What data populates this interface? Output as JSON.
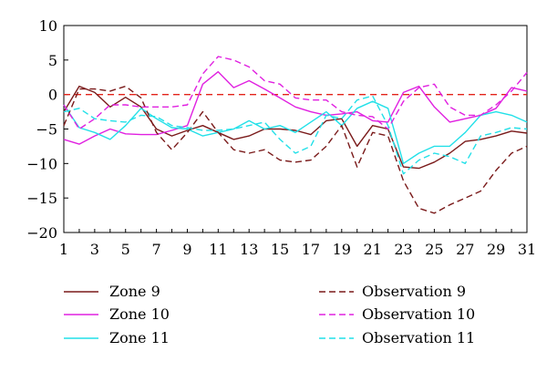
{
  "chart_data": {
    "type": "line",
    "title": "",
    "xlabel": "",
    "ylabel": "",
    "xlim": [
      1,
      31
    ],
    "ylim": [
      -20,
      10
    ],
    "x_ticks": [
      1,
      3,
      5,
      7,
      9,
      11,
      13,
      15,
      17,
      19,
      21,
      23,
      25,
      27,
      29,
      31
    ],
    "y_ticks": [
      10,
      5,
      0,
      -5,
      -10,
      -15,
      -20
    ],
    "x_tick_labels": [
      "1",
      "3",
      "5",
      "7",
      "9",
      "11",
      "13",
      "15",
      "17",
      "19",
      "21",
      "23",
      "25",
      "27",
      "29",
      "31"
    ],
    "y_tick_labels": [
      "10",
      "5",
      "0",
      "−5",
      "−10",
      "−15",
      "−20"
    ],
    "x": [
      1,
      2,
      3,
      4,
      5,
      6,
      7,
      8,
      9,
      10,
      11,
      12,
      13,
      14,
      15,
      16,
      17,
      18,
      19,
      20,
      21,
      22,
      23,
      24,
      25,
      26,
      27,
      28,
      29,
      30,
      31
    ],
    "reference_line": {
      "y": 0,
      "color": "#e3241b",
      "style": "dashed"
    },
    "legend_position": "bottom",
    "series": [
      {
        "name": "Zone 9",
        "color": "#7a1a1a",
        "style": "solid",
        "values": [
          -2.5,
          1.2,
          0.3,
          -1.8,
          -0.4,
          -1.8,
          -5.0,
          -6.0,
          -5.2,
          -4.5,
          -5.5,
          -6.5,
          -6.0,
          -5.0,
          -5.0,
          -5.2,
          -5.8,
          -3.8,
          -3.5,
          -7.5,
          -4.5,
          -5.0,
          -10.5,
          -10.7,
          -9.8,
          -8.5,
          -6.8,
          -6.5,
          -6.0,
          -5.3,
          -5.6
        ]
      },
      {
        "name": "Zone 10",
        "color": "#e020e0",
        "style": "solid",
        "values": [
          -6.5,
          -7.2,
          -6.0,
          -5.0,
          -5.7,
          -5.8,
          -5.8,
          -5.2,
          -4.5,
          1.5,
          3.3,
          1.0,
          2.0,
          0.8,
          -0.5,
          -1.8,
          -2.5,
          -3.0,
          -2.8,
          -2.5,
          -3.8,
          -4.0,
          0.3,
          1.2,
          -1.8,
          -4.0,
          -3.5,
          -3.0,
          -2.0,
          1.0,
          0.5
        ]
      },
      {
        "name": "Zone 11",
        "color": "#22e0e8",
        "style": "solid",
        "values": [
          -1.5,
          -4.8,
          -5.5,
          -6.5,
          -4.5,
          -2.0,
          -3.5,
          -4.8,
          -5.0,
          -6.0,
          -5.5,
          -5.0,
          -3.8,
          -5.0,
          -4.5,
          -5.5,
          -4.0,
          -2.5,
          -4.5,
          -2.0,
          -1.0,
          -2.0,
          -10.0,
          -8.5,
          -7.5,
          -7.5,
          -5.5,
          -3.0,
          -2.5,
          -3.0,
          -4.0
        ]
      },
      {
        "name": "Observation 9",
        "color": "#7a1a1a",
        "style": "dashed",
        "values": [
          -4.5,
          0.8,
          0.8,
          0.5,
          1.2,
          -0.5,
          -5.5,
          -8.0,
          -5.5,
          -2.5,
          -5.5,
          -8.0,
          -8.5,
          -8.0,
          -9.5,
          -9.8,
          -9.5,
          -7.5,
          -4.5,
          -10.5,
          -5.5,
          -6.0,
          -12.5,
          -16.5,
          -17.2,
          -16.0,
          -15.0,
          -14.0,
          -11.0,
          -8.5,
          -7.5
        ]
      },
      {
        "name": "Observation 10",
        "color": "#e020e0",
        "style": "dashed",
        "values": [
          -1.5,
          -5.0,
          -3.5,
          -1.5,
          -1.5,
          -1.8,
          -1.8,
          -1.8,
          -1.5,
          3.0,
          5.5,
          5.0,
          4.0,
          2.0,
          1.5,
          -0.5,
          -0.8,
          -0.8,
          -2.5,
          -3.0,
          -3.2,
          -5.0,
          -1.0,
          1.0,
          1.5,
          -1.8,
          -3.0,
          -3.0,
          -1.5,
          0.5,
          3.2
        ]
      },
      {
        "name": "Observation 11",
        "color": "#22e0e8",
        "style": "dashed",
        "values": [
          -2.5,
          -2.0,
          -3.5,
          -3.8,
          -4.0,
          -3.0,
          -3.2,
          -4.5,
          -4.8,
          -5.2,
          -5.2,
          -5.0,
          -4.5,
          -4.0,
          -6.5,
          -8.5,
          -7.5,
          -3.0,
          -3.5,
          -0.8,
          -0.2,
          -4.5,
          -11.5,
          -9.5,
          -8.5,
          -9.0,
          -10.0,
          -6.0,
          -5.5,
          -4.8,
          -5.0
        ]
      }
    ]
  }
}
